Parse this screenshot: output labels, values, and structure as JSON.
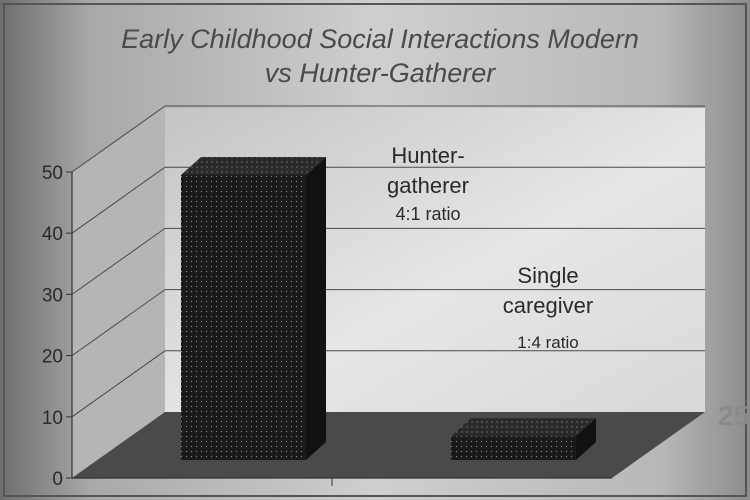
{
  "chart_data": {
    "type": "bar",
    "title_line1": "Early Childhood Social Interactions  Modern",
    "title_line2": "vs Hunter-Gatherer",
    "categories": [
      "",
      ""
    ],
    "values": [
      48,
      4
    ],
    "ylim": [
      0,
      50
    ],
    "yticks": [
      0,
      10,
      20,
      30,
      40,
      50
    ],
    "grid": true,
    "three_d": true,
    "annotations": [
      {
        "lines": [
          "Hunter-",
          "gatherer",
          "4:1 ratio"
        ]
      },
      {
        "lines": [
          "Single",
          "caregiver",
          "1:4 ratio"
        ]
      }
    ]
  },
  "colors": {
    "bar": "#1c1c1c",
    "floor": "#4a4a4a",
    "wall": "#d4d4d4",
    "text": "#2a2a2a"
  },
  "watermark": "25"
}
